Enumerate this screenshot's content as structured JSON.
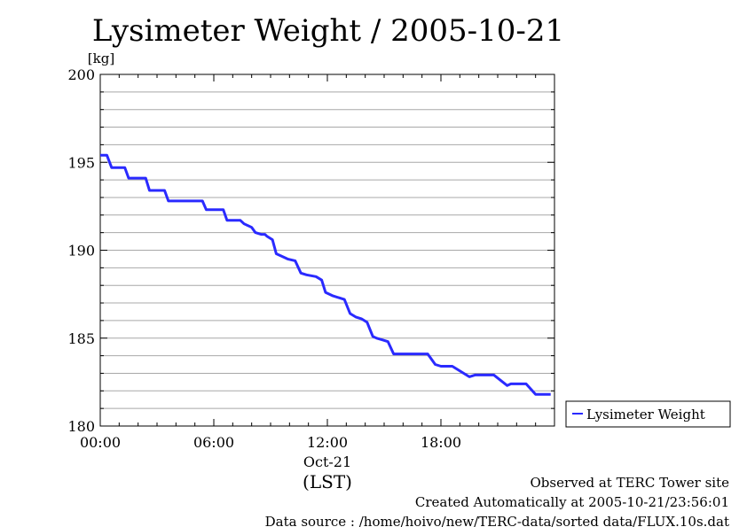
{
  "chart_data": {
    "type": "line",
    "title": "Lysimeter Weight / 2005-10-21",
    "ylabel": "[kg]",
    "xlabel": "(LST)",
    "x_date_label": "Oct-21",
    "x_unit": "hour of day (LST)",
    "xlim": [
      0,
      24
    ],
    "ylim": [
      180,
      200
    ],
    "yticks": [
      180,
      185,
      190,
      195,
      200
    ],
    "xticks": [
      {
        "value": 0,
        "label": "00:00"
      },
      {
        "value": 6,
        "label": "06:00"
      },
      {
        "value": 12,
        "label": "12:00"
      },
      {
        "value": 18,
        "label": "18:00"
      }
    ],
    "grid": true,
    "legend_position": "right",
    "series": [
      {
        "name": "Lysimeter Weight",
        "color": "#2a2aff",
        "x": [
          0.0,
          0.35,
          0.6,
          1.3,
          1.5,
          2.4,
          2.6,
          3.4,
          3.6,
          4.6,
          4.8,
          5.4,
          5.6,
          5.8,
          6.5,
          6.7,
          7.4,
          7.6,
          8.0,
          8.2,
          8.5,
          8.7,
          8.8,
          9.1,
          9.3,
          9.7,
          9.9,
          10.3,
          10.6,
          10.9,
          11.4,
          11.7,
          11.9,
          12.3,
          12.6,
          12.9,
          13.2,
          13.5,
          13.8,
          14.1,
          14.4,
          14.6,
          14.9,
          15.2,
          15.5,
          16.5,
          16.9,
          17.3,
          17.7,
          18.0,
          18.3,
          18.6,
          19.5,
          19.8,
          20.5,
          20.8,
          21.5,
          21.7,
          22.0,
          22.5,
          23.0,
          23.2,
          23.6,
          23.8
        ],
        "values": [
          195.4,
          195.4,
          194.7,
          194.7,
          194.1,
          194.1,
          193.4,
          193.4,
          192.8,
          192.8,
          192.8,
          192.8,
          192.3,
          192.3,
          192.3,
          191.7,
          191.7,
          191.5,
          191.3,
          191.0,
          190.9,
          190.9,
          190.8,
          190.6,
          189.8,
          189.6,
          189.5,
          189.4,
          188.7,
          188.6,
          188.5,
          188.3,
          187.6,
          187.4,
          187.3,
          187.2,
          186.4,
          186.2,
          186.1,
          185.9,
          185.1,
          185.0,
          184.9,
          184.8,
          184.1,
          184.1,
          184.1,
          184.1,
          183.5,
          183.4,
          183.4,
          183.4,
          182.8,
          182.9,
          182.9,
          182.9,
          182.3,
          182.4,
          182.4,
          182.4,
          181.8,
          181.8,
          181.8,
          181.8
        ]
      }
    ]
  },
  "footer": {
    "line1": "Observed at TERC Tower site",
    "line2": "Created Automatically at 2005-10-21/23:56:01",
    "line3": "Data source : /home/hoivo/new/TERC-data/sorted  data/FLUX.10s.dat"
  }
}
